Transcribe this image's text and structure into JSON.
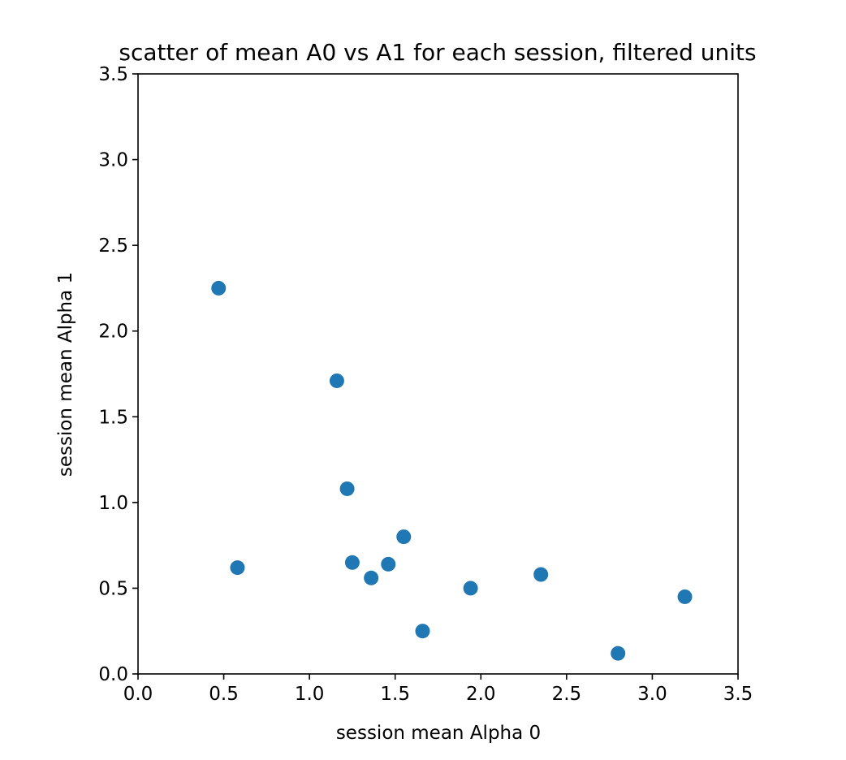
{
  "chart_data": {
    "type": "scatter",
    "title": "scatter of mean A0 vs A1 for each session, filtered units",
    "xlabel": "session mean Alpha 0",
    "ylabel": "session mean Alpha 1",
    "xlim": [
      0.0,
      3.5
    ],
    "ylim": [
      0.0,
      3.5
    ],
    "xticks": [
      "0.0",
      "0.5",
      "1.0",
      "1.5",
      "2.0",
      "2.5",
      "3.0",
      "3.5"
    ],
    "yticks": [
      "0.0",
      "0.5",
      "1.0",
      "1.5",
      "2.0",
      "2.5",
      "3.0",
      "3.5"
    ],
    "grid": false,
    "legend": "none",
    "marker_color": "#1f77b4",
    "points": [
      {
        "x": 0.47,
        "y": 2.25
      },
      {
        "x": 0.58,
        "y": 0.62
      },
      {
        "x": 1.16,
        "y": 1.71
      },
      {
        "x": 1.22,
        "y": 1.08
      },
      {
        "x": 1.25,
        "y": 0.65
      },
      {
        "x": 1.36,
        "y": 0.56
      },
      {
        "x": 1.46,
        "y": 0.64
      },
      {
        "x": 1.55,
        "y": 0.8
      },
      {
        "x": 1.66,
        "y": 0.25
      },
      {
        "x": 1.94,
        "y": 0.5
      },
      {
        "x": 2.35,
        "y": 0.58
      },
      {
        "x": 2.8,
        "y": 0.12
      },
      {
        "x": 3.19,
        "y": 0.45
      }
    ]
  }
}
